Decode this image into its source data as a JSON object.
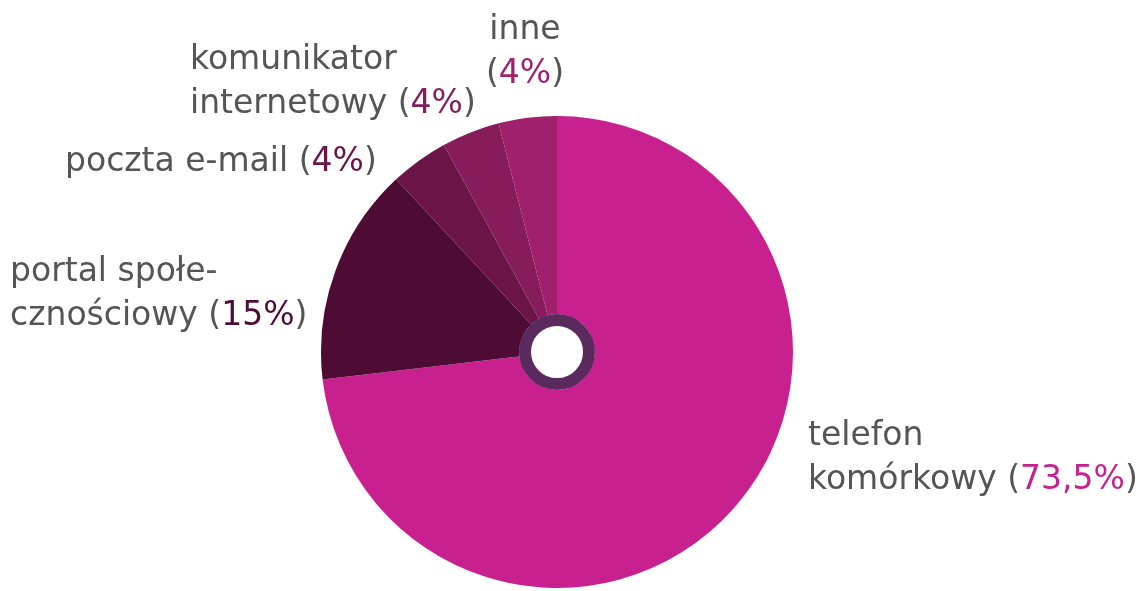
{
  "chart_data": {
    "type": "donut",
    "categories": [
      "telefon\nkomórkowy",
      "portal społe-\ncznościowy",
      "poczta e-mail",
      "komunikator\ninternetowy",
      "inne\n"
    ],
    "values": [
      73.5,
      15,
      4,
      4,
      4
    ],
    "value_labels": [
      "(73,5%)",
      "(15%)",
      "(4%)",
      "(4%)",
      "(4%)"
    ],
    "colors": [
      "#c8208f",
      "#4e0c35",
      "#6a1448",
      "#861c5c",
      "#a0206e"
    ],
    "legend": false
  }
}
